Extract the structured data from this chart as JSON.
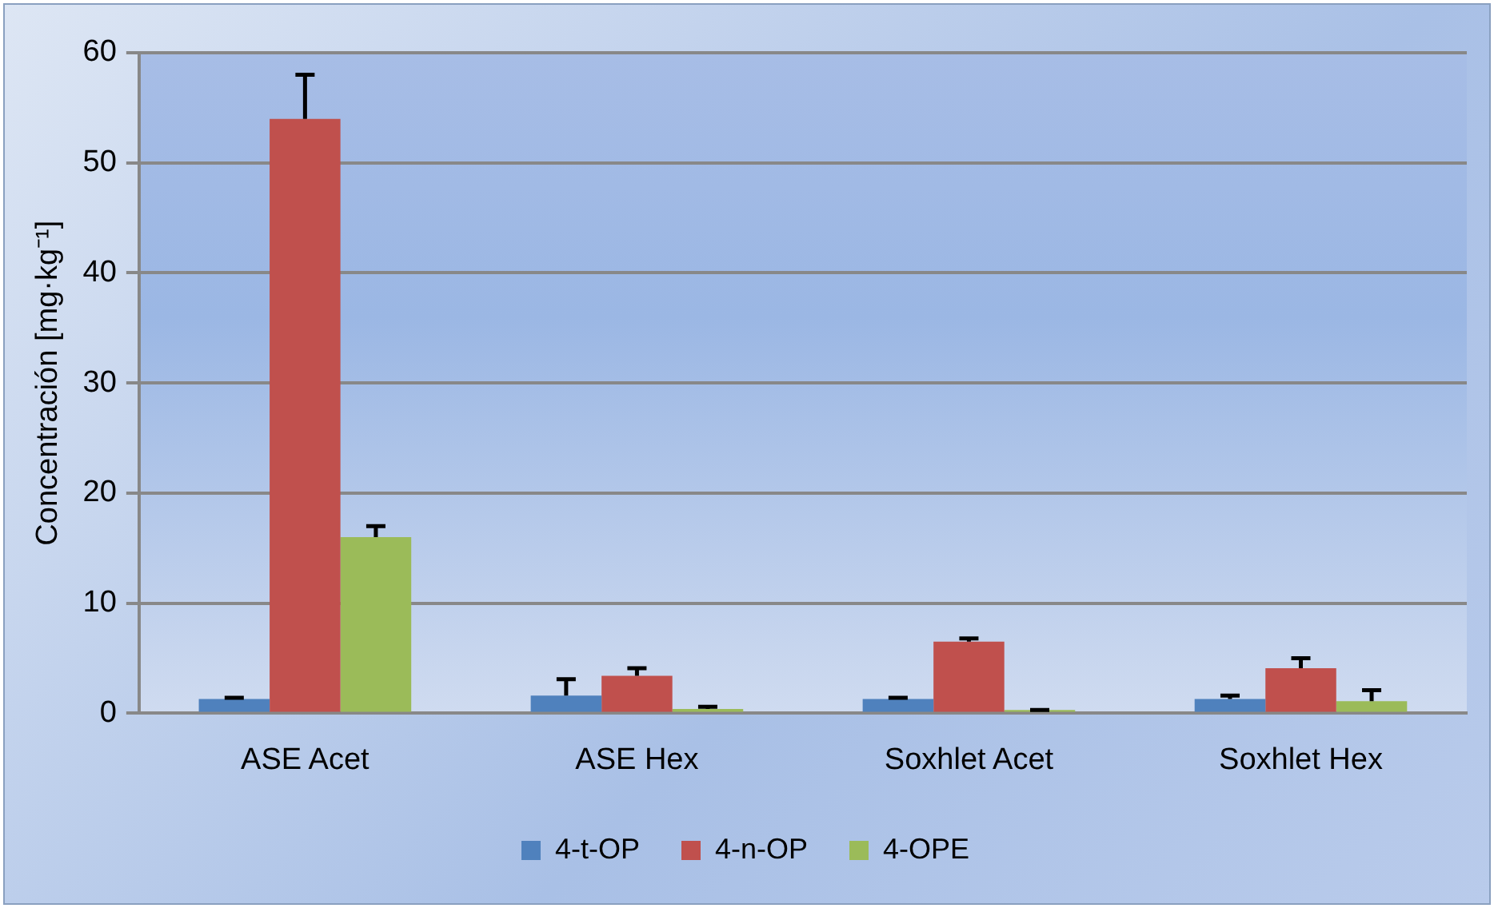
{
  "chart_data": {
    "type": "bar",
    "ylabel": "Concentración [mg·kg⁻¹]",
    "categories": [
      "ASE Acet",
      "ASE Hex",
      "Soxhlet Acet",
      "Soxhlet Hex"
    ],
    "series": [
      {
        "name": "4-t-OP",
        "color": "#4f81bd",
        "values": [
          1.3,
          1.6,
          1.3,
          1.3
        ],
        "errors": [
          [
            1.3,
            1.4
          ],
          [
            1.6,
            3.1
          ],
          [
            1.3,
            1.4
          ],
          [
            1.3,
            1.6
          ]
        ]
      },
      {
        "name": "4-n-OP",
        "color": "#c0504d",
        "values": [
          54,
          3.4,
          6.5,
          4.1
        ],
        "errors": [
          [
            54,
            58
          ],
          [
            3.4,
            4.1
          ],
          [
            6.5,
            6.8
          ],
          [
            4.1,
            5
          ]
        ]
      },
      {
        "name": "4-OPE",
        "color": "#9bbb59",
        "values": [
          16,
          0.4,
          0.3,
          1.1
        ],
        "errors": [
          [
            16,
            17
          ],
          [
            0.4,
            0.6
          ],
          [
            0.3,
            0.3
          ],
          [
            1.1,
            2.1
          ]
        ]
      }
    ],
    "ylim": [
      0,
      60
    ],
    "yticks": [
      0,
      10,
      20,
      30,
      40,
      50,
      60
    ],
    "grid": "y",
    "legend": "bottom"
  }
}
